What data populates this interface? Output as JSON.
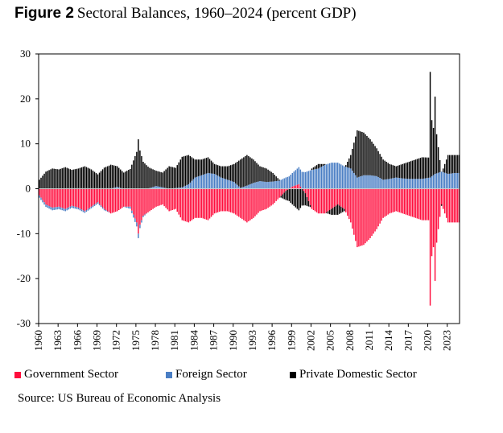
{
  "figure_label": "Figure 2",
  "title": "Sectoral Balances, 1960–2024 (percent GDP)",
  "source": "Source: US Bureau of Economic Analysis",
  "legend": [
    {
      "name": "Government Sector",
      "color": "#ff0d3d"
    },
    {
      "name": "Foreign Sector",
      "color": "#4a7ec4"
    },
    {
      "name": "Private Domestic Sector",
      "color": "#000000"
    }
  ],
  "chart_data": {
    "type": "bar",
    "stacked": true,
    "frequency": "quarterly",
    "ylim": [
      -30,
      30
    ],
    "yticks": [
      30,
      20,
      10,
      0,
      -10,
      -20,
      -30
    ],
    "xticks": [
      "1960",
      "1963",
      "1966",
      "1969",
      "1972",
      "1975",
      "1978",
      "1981",
      "1984",
      "1987",
      "1990",
      "1993",
      "1996",
      "1999",
      "2002",
      "2005",
      "2008",
      "2011",
      "2014",
      "2017",
      "2020",
      "2023"
    ],
    "grid": false,
    "legend_position": "bottom",
    "series": [
      {
        "name": "Government Sector",
        "color": "#ff0d3d",
        "points": [
          [
            "1960",
            -1.5
          ],
          [
            "1961",
            -3.5
          ],
          [
            "1962",
            -4.2
          ],
          [
            "1963",
            -4.0
          ],
          [
            "1964",
            -4.5
          ],
          [
            "1965",
            -3.8
          ],
          [
            "1966",
            -4.2
          ],
          [
            "1967",
            -5.0
          ],
          [
            "1968",
            -4.0
          ],
          [
            "1969",
            -3.0
          ],
          [
            "1970",
            -4.5
          ],
          [
            "1971",
            -5.5
          ],
          [
            "1972",
            -5.0
          ],
          [
            "1973",
            -4.0
          ],
          [
            "1974",
            -4.0
          ],
          [
            "1975.0",
            -7.5
          ],
          [
            "1975.25",
            -10.0
          ],
          [
            "1975.5",
            -8.0
          ],
          [
            "1976",
            -6.0
          ],
          [
            "1977",
            -5.0
          ],
          [
            "1978",
            -4.0
          ],
          [
            "1979",
            -3.5
          ],
          [
            "1980",
            -5.0
          ],
          [
            "1981",
            -4.5
          ],
          [
            "1982",
            -7.0
          ],
          [
            "1983",
            -7.5
          ],
          [
            "1984",
            -6.5
          ],
          [
            "1985",
            -6.5
          ],
          [
            "1986",
            -7.0
          ],
          [
            "1987",
            -5.5
          ],
          [
            "1988",
            -5.0
          ],
          [
            "1989",
            -5.0
          ],
          [
            "1990",
            -5.5
          ],
          [
            "1991",
            -6.5
          ],
          [
            "1992",
            -7.5
          ],
          [
            "1993",
            -6.5
          ],
          [
            "1994",
            -5.0
          ],
          [
            "1995",
            -4.5
          ],
          [
            "1996",
            -3.5
          ],
          [
            "1997",
            -2.0
          ],
          [
            "1998",
            -0.5
          ],
          [
            "1999",
            0.5
          ],
          [
            "2000",
            1.0
          ],
          [
            "2001",
            -1.0
          ],
          [
            "2002",
            -4.5
          ],
          [
            "2003",
            -5.5
          ],
          [
            "2004",
            -5.5
          ],
          [
            "2005",
            -4.5
          ],
          [
            "2006",
            -3.5
          ],
          [
            "2007",
            -4.5
          ],
          [
            "2008",
            -7.5
          ],
          [
            "2009",
            -13.0
          ],
          [
            "2010",
            -12.5
          ],
          [
            "2011",
            -11.0
          ],
          [
            "2012",
            -9.0
          ],
          [
            "2013",
            -6.5
          ],
          [
            "2014",
            -5.5
          ],
          [
            "2015",
            -5.0
          ],
          [
            "2016",
            -5.5
          ],
          [
            "2017",
            -6.0
          ],
          [
            "2018",
            -6.5
          ],
          [
            "2019",
            -7.0
          ],
          [
            "2020.0",
            -7.0
          ],
          [
            "2020.25",
            -26.0
          ],
          [
            "2020.5",
            -15.0
          ],
          [
            "2020.75",
            -13.0
          ],
          [
            "2021.0",
            -20.5
          ],
          [
            "2021.25",
            -12.0
          ],
          [
            "2021.5",
            -9.0
          ],
          [
            "2022",
            -3.5
          ],
          [
            "2023",
            -7.5
          ],
          [
            "2024",
            -7.5
          ]
        ]
      },
      {
        "name": "Foreign Sector",
        "color": "#4a7ec4",
        "points": [
          [
            "1960",
            -0.5
          ],
          [
            "1962",
            -0.6
          ],
          [
            "1966",
            -0.4
          ],
          [
            "1970",
            -0.3
          ],
          [
            "1972",
            0.4
          ],
          [
            "1975.25",
            -1.0
          ],
          [
            "1976",
            -0.3
          ],
          [
            "1978",
            0.6
          ],
          [
            "1980",
            0.0
          ],
          [
            "1982",
            0.3
          ],
          [
            "1983",
            1.0
          ],
          [
            "1984",
            2.5
          ],
          [
            "1985",
            3.0
          ],
          [
            "1986",
            3.5
          ],
          [
            "1987",
            3.3
          ],
          [
            "1988",
            2.5
          ],
          [
            "1989",
            2.0
          ],
          [
            "1990",
            1.5
          ],
          [
            "1991",
            0.2
          ],
          [
            "1992",
            0.7
          ],
          [
            "1993",
            1.3
          ],
          [
            "1994",
            1.7
          ],
          [
            "1995",
            1.5
          ],
          [
            "1996",
            1.6
          ],
          [
            "1997",
            1.8
          ],
          [
            "1998",
            2.5
          ],
          [
            "1999",
            3.0
          ],
          [
            "2000",
            3.8
          ],
          [
            "2001",
            3.7
          ],
          [
            "2002",
            4.2
          ],
          [
            "2003",
            4.5
          ],
          [
            "2004",
            5.3
          ],
          [
            "2005",
            5.8
          ],
          [
            "2006",
            5.8
          ],
          [
            "2007",
            5.0
          ],
          [
            "2008",
            4.5
          ],
          [
            "2009",
            2.5
          ],
          [
            "2010",
            3.0
          ],
          [
            "2011",
            3.0
          ],
          [
            "2012",
            2.8
          ],
          [
            "2013",
            2.0
          ],
          [
            "2014",
            2.2
          ],
          [
            "2015",
            2.5
          ],
          [
            "2016",
            2.3
          ],
          [
            "2017",
            2.2
          ],
          [
            "2018",
            2.2
          ],
          [
            "2019",
            2.2
          ],
          [
            "2020.25",
            2.5
          ],
          [
            "2021",
            3.3
          ],
          [
            "2022",
            3.8
          ],
          [
            "2023",
            3.3
          ],
          [
            "2024",
            3.5
          ]
        ]
      },
      {
        "name": "Private Domestic Sector",
        "color": "#000000",
        "points": [
          [
            "1960",
            2.0
          ],
          [
            "1961",
            3.8
          ],
          [
            "1962",
            4.5
          ],
          [
            "1963",
            4.3
          ],
          [
            "1964",
            4.8
          ],
          [
            "1965",
            4.2
          ],
          [
            "1966",
            4.5
          ],
          [
            "1967",
            5.0
          ],
          [
            "1968",
            4.3
          ],
          [
            "1969",
            3.2
          ],
          [
            "1970",
            4.7
          ],
          [
            "1971",
            5.3
          ],
          [
            "1972",
            4.6
          ],
          [
            "1973",
            3.6
          ],
          [
            "1974",
            4.4
          ],
          [
            "1975.0",
            8.2
          ],
          [
            "1975.25",
            11.0
          ],
          [
            "1975.5",
            8.5
          ],
          [
            "1976",
            6.0
          ],
          [
            "1977",
            4.5
          ],
          [
            "1978",
            3.4
          ],
          [
            "1979",
            3.3
          ],
          [
            "1980",
            5.0
          ],
          [
            "1981",
            4.5
          ],
          [
            "1982",
            6.8
          ],
          [
            "1983",
            6.5
          ],
          [
            "1984",
            4.0
          ],
          [
            "1985",
            3.5
          ],
          [
            "1986",
            3.5
          ],
          [
            "1987",
            2.2
          ],
          [
            "1988",
            2.5
          ],
          [
            "1989",
            3.0
          ],
          [
            "1990",
            4.0
          ],
          [
            "1991",
            6.3
          ],
          [
            "1992",
            6.8
          ],
          [
            "1993",
            5.2
          ],
          [
            "1994",
            3.3
          ],
          [
            "1995",
            3.0
          ],
          [
            "1996",
            1.9
          ],
          [
            "1997",
            0.2
          ],
          [
            "1998",
            -2.0
          ],
          [
            "1999",
            -3.5
          ],
          [
            "2000",
            -4.8
          ],
          [
            "2001",
            -2.7
          ],
          [
            "2002",
            0.3
          ],
          [
            "2003",
            1.0
          ],
          [
            "2004",
            0.2
          ],
          [
            "2005",
            -1.3
          ],
          [
            "2006",
            -2.3
          ],
          [
            "2007",
            -0.5
          ],
          [
            "2008",
            3.0
          ],
          [
            "2009",
            10.5
          ],
          [
            "2010",
            9.5
          ],
          [
            "2011",
            8.0
          ],
          [
            "2012",
            6.2
          ],
          [
            "2013",
            4.5
          ],
          [
            "2014",
            3.3
          ],
          [
            "2015",
            2.5
          ],
          [
            "2016",
            3.2
          ],
          [
            "2017",
            3.8
          ],
          [
            "2018",
            4.3
          ],
          [
            "2019",
            4.8
          ],
          [
            "2020.0",
            4.5
          ],
          [
            "2020.25",
            23.5
          ],
          [
            "2020.5",
            12.5
          ],
          [
            "2020.75",
            10.5
          ],
          [
            "2021.0",
            17.2
          ],
          [
            "2021.25",
            8.7
          ],
          [
            "2021.5",
            5.7
          ],
          [
            "2022",
            -0.3
          ],
          [
            "2023",
            4.2
          ],
          [
            "2024",
            4.0
          ]
        ]
      }
    ]
  }
}
